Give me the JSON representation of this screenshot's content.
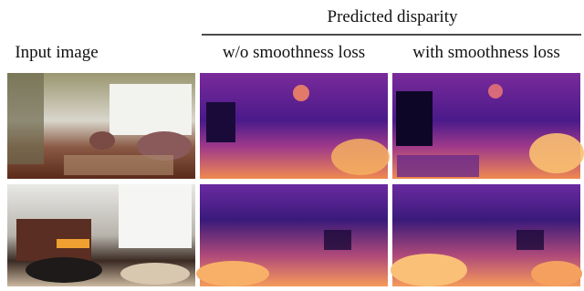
{
  "header": {
    "title": "Predicted disparity"
  },
  "columns": [
    "Input image",
    "w/o smoothness loss",
    "with smoothness loss"
  ]
}
